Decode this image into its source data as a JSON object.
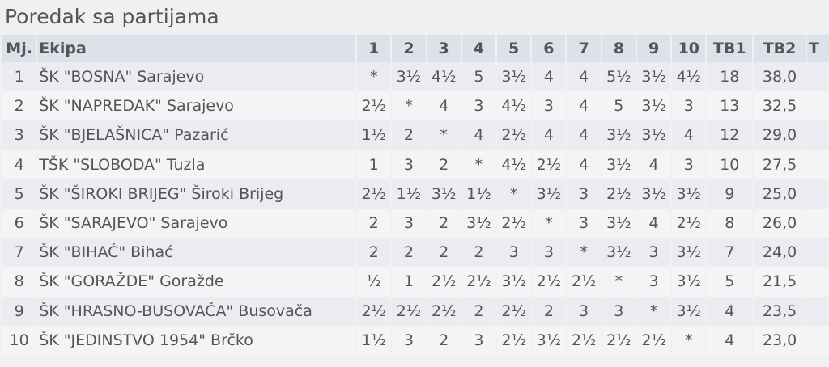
{
  "title": "Poredak sa partijama",
  "columns": [
    "Mj.",
    "Ekipa",
    "1",
    "2",
    "3",
    "4",
    "5",
    "6",
    "7",
    "8",
    "9",
    "10",
    "TB1",
    "TB2",
    "T"
  ],
  "rows": [
    {
      "rank": "1",
      "team": "ŠK \"BOSNA\" Sarajevo",
      "results": [
        "*",
        "3½",
        "4½",
        "5",
        "3½",
        "4",
        "4",
        "5½",
        "3½",
        "4½"
      ],
      "tb1": "18",
      "tb2": "38,0"
    },
    {
      "rank": "2",
      "team": "ŠK \"NAPREDAK\" Sarajevo",
      "results": [
        "2½",
        "*",
        "4",
        "3",
        "4½",
        "3",
        "4",
        "5",
        "3½",
        "3"
      ],
      "tb1": "13",
      "tb2": "32,5"
    },
    {
      "rank": "3",
      "team": "ŠK \"BJELAŠNICA\" Pazarić",
      "results": [
        "1½",
        "2",
        "*",
        "4",
        "2½",
        "4",
        "4",
        "3½",
        "3½",
        "4"
      ],
      "tb1": "12",
      "tb2": "29,0"
    },
    {
      "rank": "4",
      "team": "TŠK \"SLOBODA\" Tuzla",
      "results": [
        "1",
        "3",
        "2",
        "*",
        "4½",
        "2½",
        "4",
        "3½",
        "4",
        "3"
      ],
      "tb1": "10",
      "tb2": "27,5"
    },
    {
      "rank": "5",
      "team": "ŠK \"ŠIROKI BRIJEG\" Široki Brijeg",
      "results": [
        "2½",
        "1½",
        "3½",
        "1½",
        "*",
        "3½",
        "3",
        "2½",
        "3½",
        "3½"
      ],
      "tb1": "9",
      "tb2": "25,0"
    },
    {
      "rank": "6",
      "team": "ŠK \"SARAJEVO\" Sarajevo",
      "results": [
        "2",
        "3",
        "2",
        "3½",
        "2½",
        "*",
        "3",
        "3½",
        "4",
        "2½"
      ],
      "tb1": "8",
      "tb2": "26,0"
    },
    {
      "rank": "7",
      "team": "ŠK \"BIHAĆ\" Bihać",
      "results": [
        "2",
        "2",
        "2",
        "2",
        "3",
        "3",
        "*",
        "3½",
        "3",
        "3½"
      ],
      "tb1": "7",
      "tb2": "24,0"
    },
    {
      "rank": "8",
      "team": "ŠK \"GORAŽDE\" Goražde",
      "results": [
        "½",
        "1",
        "2½",
        "2½",
        "3½",
        "2½",
        "2½",
        "*",
        "3",
        "3½"
      ],
      "tb1": "5",
      "tb2": "21,5"
    },
    {
      "rank": "9",
      "team": "ŠK \"HRASNO-BUSOVAČA\" Busovača",
      "results": [
        "2½",
        "2½",
        "2½",
        "2",
        "2½",
        "2",
        "3",
        "3",
        "*",
        "3½"
      ],
      "tb1": "4",
      "tb2": "23,5"
    },
    {
      "rank": "10",
      "team": "ŠK \"JEDINSTVO 1954\" Brčko",
      "results": [
        "1½",
        "3",
        "2",
        "3",
        "2½",
        "3½",
        "2½",
        "2½",
        "2½",
        "*"
      ],
      "tb1": "4",
      "tb2": "23,0"
    }
  ]
}
